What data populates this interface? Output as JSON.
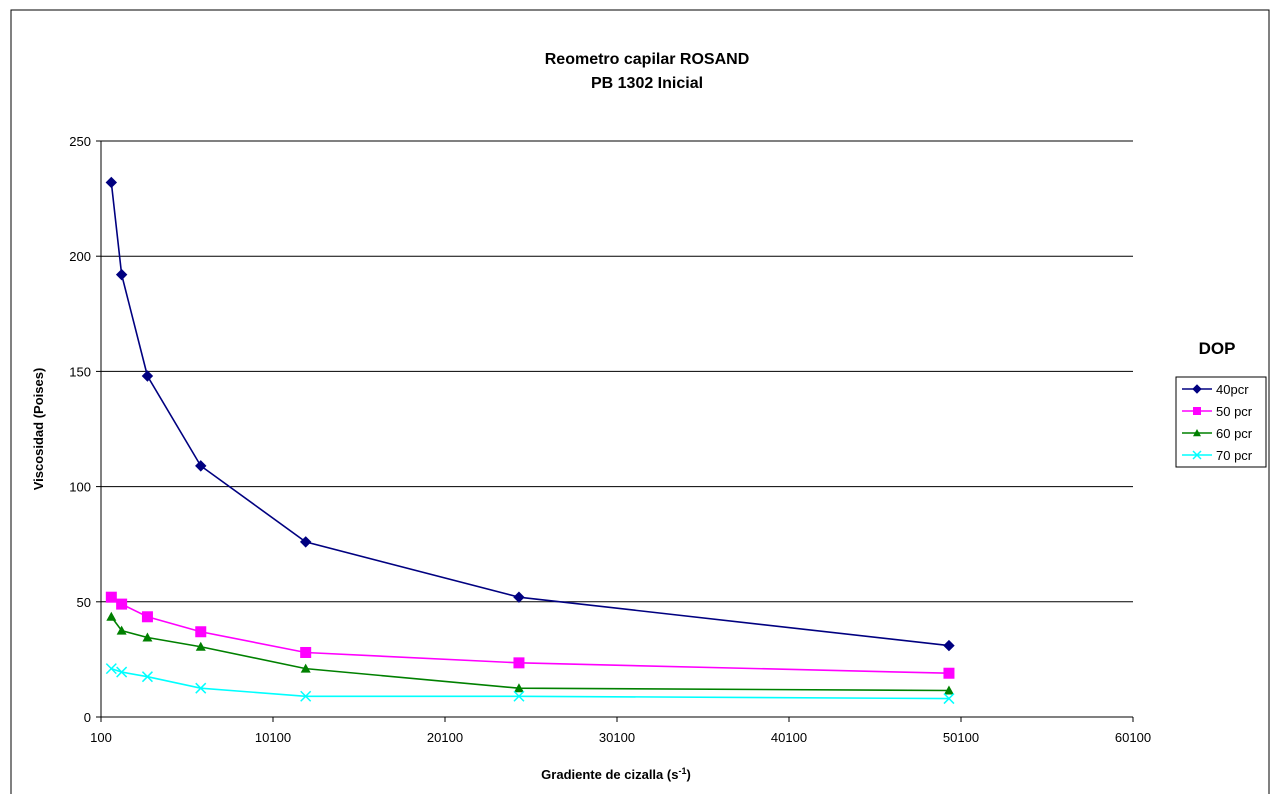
{
  "chart_data": {
    "type": "line",
    "title": "Reometro capilar ROSAND",
    "subtitle": "PB 1302  Inicial",
    "xlabel_main": "Gradiente de cizalla (s",
    "xlabel_sup": "-1",
    "xlabel_end": ")",
    "ylabel": "Viscosidad (Poises)",
    "xlim": [
      100,
      60100
    ],
    "ylim": [
      0,
      250
    ],
    "x_ticks": [
      100,
      10100,
      20100,
      30100,
      40100,
      50100,
      60100
    ],
    "y_ticks": [
      0,
      50,
      100,
      150,
      200,
      250
    ],
    "grid": "horizontal",
    "legend_title": "DOP",
    "legend_position": "right",
    "series": [
      {
        "name": "40pcr",
        "color": "#000080",
        "marker": "diamond",
        "points": [
          [
            700,
            232
          ],
          [
            1300,
            192
          ],
          [
            2800,
            148
          ],
          [
            5900,
            109
          ],
          [
            12000,
            76
          ],
          [
            24400,
            52
          ],
          [
            49400,
            31
          ]
        ]
      },
      {
        "name": "50 pcr",
        "color": "#FF00FF",
        "marker": "square",
        "points": [
          [
            700,
            52
          ],
          [
            1300,
            49
          ],
          [
            2800,
            43.5
          ],
          [
            5900,
            37
          ],
          [
            12000,
            28
          ],
          [
            24400,
            23.5
          ],
          [
            49400,
            19
          ]
        ]
      },
      {
        "name": "60 pcr",
        "color": "#008000",
        "marker": "triangle",
        "points": [
          [
            700,
            43.5
          ],
          [
            1300,
            37.5
          ],
          [
            2800,
            34.5
          ],
          [
            5900,
            30.5
          ],
          [
            12000,
            21
          ],
          [
            24400,
            12.5
          ],
          [
            49400,
            11.5
          ]
        ]
      },
      {
        "name": "70 pcr",
        "color": "#00FFFF",
        "marker": "x",
        "points": [
          [
            700,
            21
          ],
          [
            1300,
            19.5
          ],
          [
            2800,
            17.5
          ],
          [
            5900,
            12.5
          ],
          [
            12000,
            9
          ],
          [
            24400,
            9
          ],
          [
            49400,
            8
          ]
        ]
      }
    ]
  }
}
